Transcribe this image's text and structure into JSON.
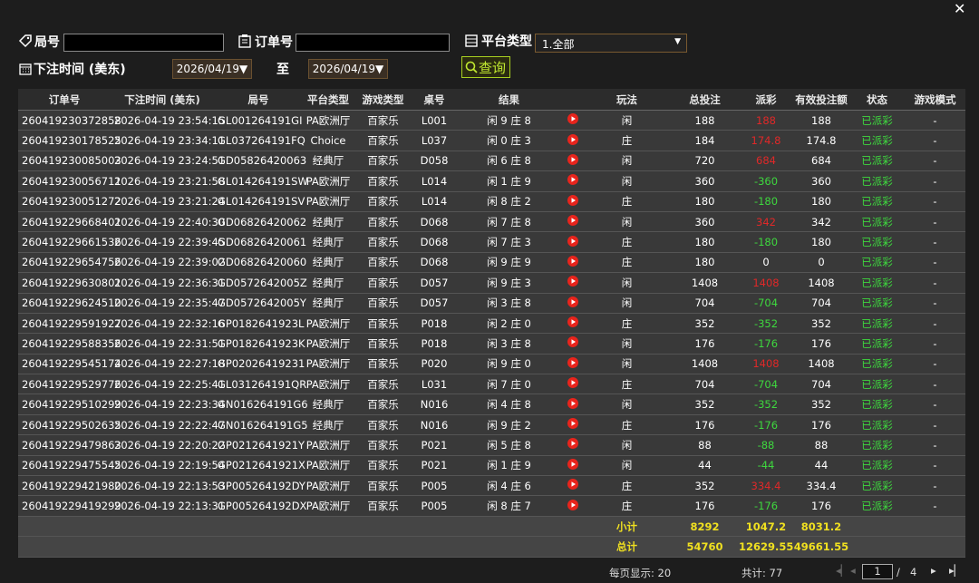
{
  "filters": {
    "round_label": "局号",
    "order_label": "订单号",
    "platform_label": "平台类型",
    "platform_value": "1.全部",
    "time_label": "下注时间 (美东)",
    "start_date": "2026/04/19",
    "to": "至",
    "end_date": "2026/04/19",
    "query": "查询"
  },
  "table": {
    "headers": [
      "订单号",
      "下注时间 (美东)",
      "局号",
      "平台类型",
      "游戏类型",
      "桌号",
      "结果",
      "玩法",
      "总投注",
      "派彩",
      "有效投注额",
      "状态",
      "游戏模式"
    ],
    "rows": [
      [
        "260419230372858",
        "2026-04-19 23:54:15",
        "GL001264191GI",
        "PA欧洲厅",
        "百家乐",
        "L001",
        "闲 9 庄 8",
        "闲",
        "188",
        "188",
        "188",
        "已派彩",
        "-"
      ],
      [
        "260419230178525",
        "2026-04-19 23:34:11",
        "GL037264191FQ",
        "Choice",
        "百家乐",
        "L037",
        "闲 0 庄 3",
        "庄",
        "184",
        "174.8",
        "174.8",
        "已派彩",
        "-"
      ],
      [
        "260419230085003",
        "2026-04-19 23:24:51",
        "GD05826420063",
        "经典厅",
        "百家乐",
        "D058",
        "闲 6 庄 8",
        "闲",
        "720",
        "684",
        "684",
        "已派彩",
        "-"
      ],
      [
        "260419230056711",
        "2026-04-19 23:21:58",
        "GL014264191SW",
        "PA欧洲厅",
        "百家乐",
        "L014",
        "闲 1 庄 9",
        "闲",
        "360",
        "-360",
        "360",
        "已派彩",
        "-"
      ],
      [
        "260419230051272",
        "2026-04-19 23:21:24",
        "GL014264191SV",
        "PA欧洲厅",
        "百家乐",
        "L014",
        "闲 8 庄 2",
        "庄",
        "180",
        "-180",
        "180",
        "已派彩",
        "-"
      ],
      [
        "260419229668401",
        "2026-04-19 22:40:30",
        "GD06826420062",
        "经典厅",
        "百家乐",
        "D068",
        "闲 7 庄 8",
        "闲",
        "360",
        "342",
        "342",
        "已派彩",
        "-"
      ],
      [
        "260419229661536",
        "2026-04-19 22:39:45",
        "GD06826420061",
        "经典厅",
        "百家乐",
        "D068",
        "闲 7 庄 3",
        "庄",
        "180",
        "-180",
        "180",
        "已派彩",
        "-"
      ],
      [
        "260419229654756",
        "2026-04-19 22:39:02",
        "GD06826420060",
        "经典厅",
        "百家乐",
        "D068",
        "闲 9 庄 9",
        "庄",
        "180",
        "0",
        "0",
        "已派彩",
        "-"
      ],
      [
        "260419229630801",
        "2026-04-19 22:36:31",
        "GD0572642005Z",
        "经典厅",
        "百家乐",
        "D057",
        "闲 9 庄 3",
        "闲",
        "1408",
        "1408",
        "1408",
        "已派彩",
        "-"
      ],
      [
        "260419229624510",
        "2026-04-19 22:35:47",
        "GD0572642005Y",
        "经典厅",
        "百家乐",
        "D057",
        "闲 3 庄 8",
        "闲",
        "704",
        "-704",
        "704",
        "已派彩",
        "-"
      ],
      [
        "260419229591927",
        "2026-04-19 22:32:16",
        "GP0182641923L",
        "PA欧洲厅",
        "百家乐",
        "P018",
        "闲 2 庄 0",
        "庄",
        "352",
        "-352",
        "352",
        "已派彩",
        "-"
      ],
      [
        "260419229588356",
        "2026-04-19 22:31:51",
        "GP0182641923K",
        "PA欧洲厅",
        "百家乐",
        "P018",
        "闲 3 庄 8",
        "闲",
        "176",
        "-176",
        "176",
        "已派彩",
        "-"
      ],
      [
        "260419229545174",
        "2026-04-19 22:27:18",
        "GP02026419231",
        "PA欧洲厅",
        "百家乐",
        "P020",
        "闲 9 庄 0",
        "闲",
        "1408",
        "1408",
        "1408",
        "已派彩",
        "-"
      ],
      [
        "260419229529776",
        "2026-04-19 22:25:41",
        "GL031264191QR",
        "PA欧洲厅",
        "百家乐",
        "L031",
        "闲 7 庄 0",
        "庄",
        "704",
        "-704",
        "704",
        "已派彩",
        "-"
      ],
      [
        "260419229510299",
        "2026-04-19 22:23:34",
        "GN016264191G6",
        "经典厅",
        "百家乐",
        "N016",
        "闲 4 庄 8",
        "闲",
        "352",
        "-352",
        "352",
        "已派彩",
        "-"
      ],
      [
        "260419229502635",
        "2026-04-19 22:22:47",
        "GN016264191G5",
        "经典厅",
        "百家乐",
        "N016",
        "闲 9 庄 2",
        "庄",
        "176",
        "-176",
        "176",
        "已派彩",
        "-"
      ],
      [
        "260419229479863",
        "2026-04-19 22:20:22",
        "GP0212641921Y",
        "PA欧洲厅",
        "百家乐",
        "P021",
        "闲 5 庄 8",
        "闲",
        "88",
        "-88",
        "88",
        "已派彩",
        "-"
      ],
      [
        "260419229475545",
        "2026-04-19 22:19:54",
        "GP0212641921X",
        "PA欧洲厅",
        "百家乐",
        "P021",
        "闲 1 庄 9",
        "闲",
        "44",
        "-44",
        "44",
        "已派彩",
        "-"
      ],
      [
        "260419229421980",
        "2026-04-19 22:13:53",
        "GP005264192DY",
        "PA欧洲厅",
        "百家乐",
        "P005",
        "闲 4 庄 6",
        "庄",
        "352",
        "334.4",
        "334.4",
        "已派彩",
        "-"
      ],
      [
        "260419229419299",
        "2026-04-19 22:13:31",
        "GP005264192DX",
        "PA欧洲厅",
        "百家乐",
        "P005",
        "闲 8 庄 7",
        "庄",
        "176",
        "-176",
        "176",
        "已派彩",
        "-"
      ]
    ],
    "subtotal": {
      "label": "小计",
      "bet": "8292",
      "payout": "1047.2",
      "valid": "8031.2"
    },
    "total": {
      "label": "总计",
      "bet": "54760",
      "payout": "12629.55",
      "valid": "49661.55"
    }
  },
  "pagination": {
    "per_page": "每页显示: 20",
    "count": "共计: 77",
    "page": "1",
    "sep": "/",
    "pages": "4"
  }
}
